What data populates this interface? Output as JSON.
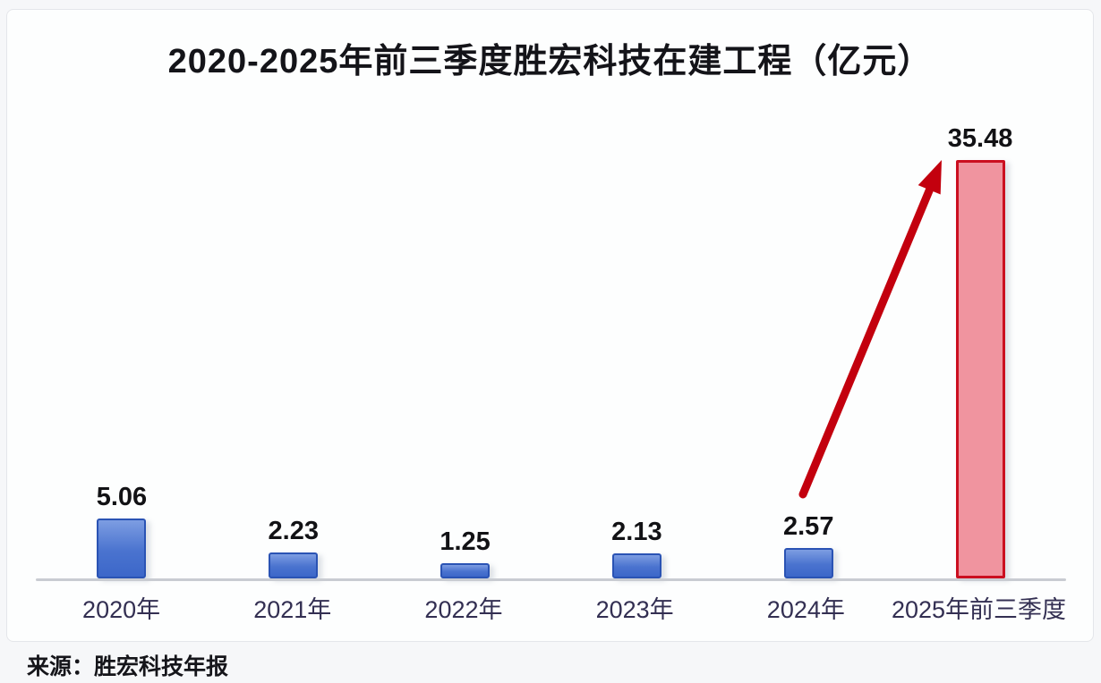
{
  "chart_data": {
    "type": "bar",
    "title": "2020-2025年前三季度胜宏科技在建工程（亿元）",
    "categories": [
      "2020年",
      "2021年",
      "2022年",
      "2023年",
      "2024年",
      "2025年前三季度"
    ],
    "values": [
      5.06,
      2.23,
      1.25,
      2.13,
      2.57,
      35.48
    ],
    "value_labels": [
      "5.06",
      "2.23",
      "1.25",
      "2.13",
      "2.57",
      "35.48"
    ],
    "highlight_index": 5,
    "ylim": [
      0,
      38
    ],
    "grid": false,
    "legend": "none",
    "xlabel": "",
    "ylabel": "",
    "annotation": "red arrow rising from the 2024 bar to the 2025 highlighted bar",
    "colors": {
      "bar_fill_top": "#7d9de2",
      "bar_fill_bottom": "#3c67c9",
      "bar_border": "#2a53b4",
      "highlight_fill": "#f0949f",
      "highlight_border": "#cb0f20",
      "arrow": "#c3000e",
      "axis_line": "#c9ccd2",
      "x_label_color": "#332f52",
      "value_label_color": "#121215",
      "title_color": "#141419"
    }
  },
  "source": {
    "text": "来源：胜宏科技年报"
  }
}
